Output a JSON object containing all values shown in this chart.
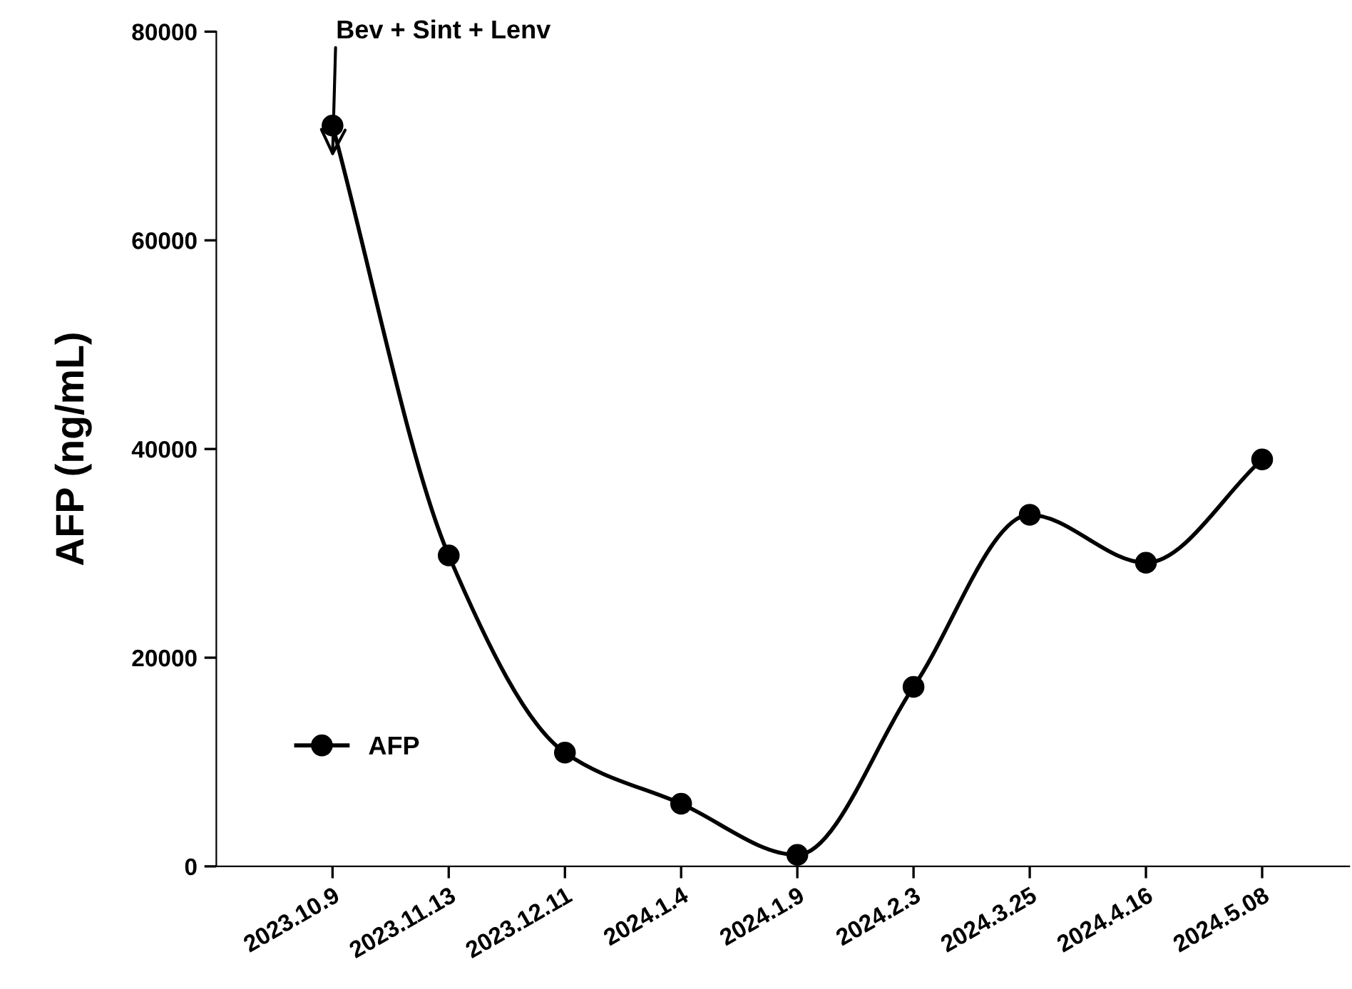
{
  "chart_data": {
    "type": "line",
    "ylabel": "AFP (ng/mL)",
    "categories": [
      "2023.10.9",
      "2023.11.13",
      "2023.12.11",
      "2024.1.4",
      "2024.1.9",
      "2024.2.3",
      "2024.3.25",
      "2024.4.16",
      "2024.5.08"
    ],
    "series": [
      {
        "name": "AFP",
        "color": "#000000",
        "values": [
          71000,
          29800,
          10900,
          6000,
          1100,
          17200,
          33700,
          29100,
          39000
        ]
      }
    ],
    "ylim": [
      0,
      80000
    ],
    "yticks": [
      0,
      20000,
      40000,
      60000,
      80000
    ],
    "annotations": [
      {
        "text": "Bev + Sint + Lenv",
        "x": "2023.10.9",
        "y": 68000
      }
    ],
    "marker": "circle",
    "line_style": "solid",
    "legend": "bottom left",
    "grid": false
  }
}
